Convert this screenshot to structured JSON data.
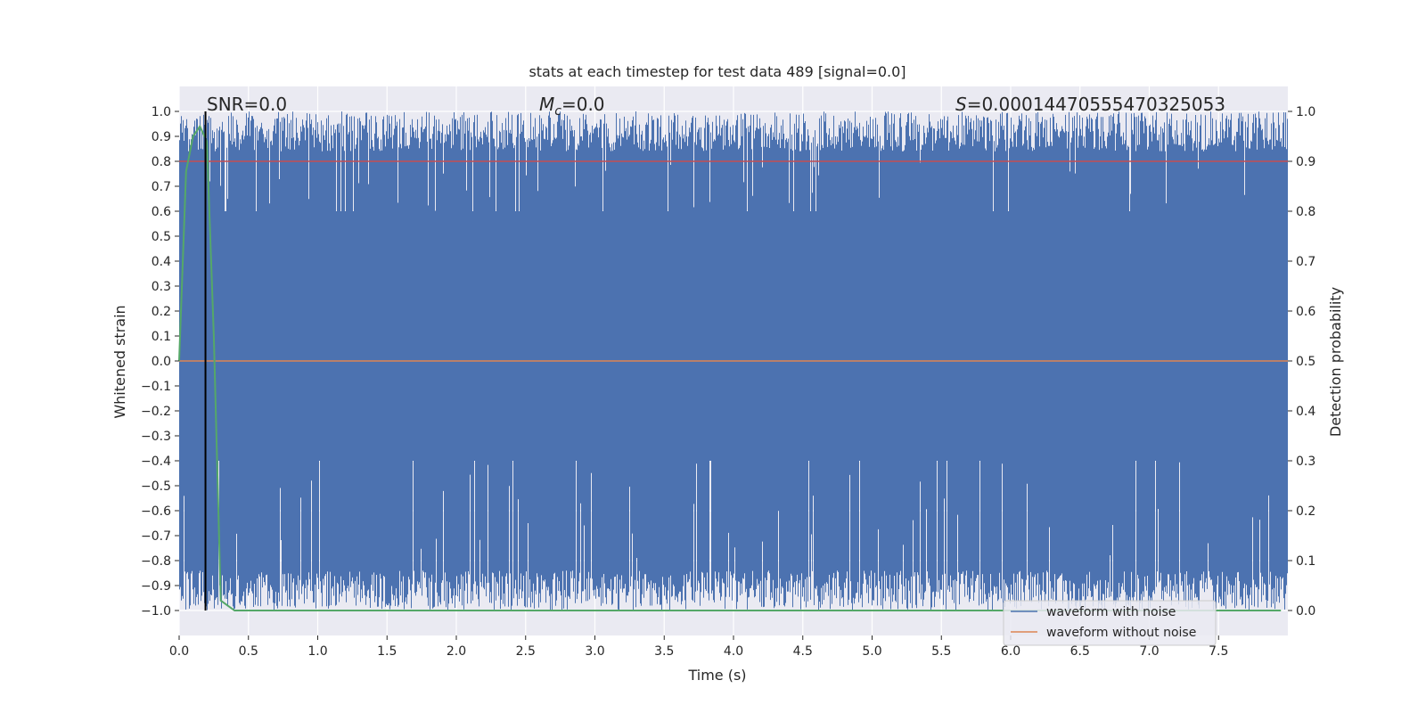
{
  "chart_data": {
    "type": "line",
    "title": "stats at each timestep for test data 489 [signal=0.0]",
    "xlabel": "Time (s)",
    "ylabel": "Whitened strain",
    "ylabel_right": "Detection probability",
    "xlim": [
      0.0,
      8.0
    ],
    "ylim": [
      -1.1,
      1.1
    ],
    "ylim_right": [
      -0.05,
      1.05
    ],
    "x_ticks": [
      "0.0",
      "0.5",
      "1.0",
      "1.5",
      "2.0",
      "2.5",
      "3.0",
      "3.5",
      "4.0",
      "4.5",
      "5.0",
      "5.5",
      "6.0",
      "6.5",
      "7.0",
      "7.5"
    ],
    "y_ticks": [
      "1.0",
      "0.9",
      "0.8",
      "0.7",
      "0.6",
      "0.5",
      "0.4",
      "0.3",
      "0.2",
      "0.1",
      "0.0",
      "−0.1",
      "−0.2",
      "−0.3",
      "−0.4",
      "−0.5",
      "−0.6",
      "−0.7",
      "−0.8",
      "−0.9",
      "−1.0"
    ],
    "y_right_ticks": [
      "1.0",
      "0.9",
      "0.8",
      "0.7",
      "0.6",
      "0.5",
      "0.4",
      "0.3",
      "0.2",
      "0.1",
      "0.0"
    ],
    "grid": true,
    "annotations": {
      "snr": "SNR=0.0",
      "mc_symbol": "M",
      "mc_sub": "c",
      "mc_value": "=0.0",
      "s_symbol": "S",
      "s_value": "=0.00014470555470325053"
    },
    "series": [
      {
        "name": "waveform with noise",
        "color": "#4c72b0",
        "description_range": [
          -1.0,
          1.0
        ]
      },
      {
        "name": "waveform without noise",
        "color": "#dd8452",
        "values_constant": 0.0
      }
    ],
    "detection_probability": {
      "color": "#55a868",
      "x": [
        0.0,
        0.05,
        0.1,
        0.15,
        0.2,
        0.25,
        0.3,
        0.35,
        0.4,
        1.0,
        2.0,
        3.0,
        4.0,
        5.0,
        6.0,
        7.0,
        7.95
      ],
      "y": [
        0.5,
        0.88,
        0.95,
        0.97,
        0.94,
        0.55,
        0.02,
        0.01,
        0.0,
        0.0,
        0.0,
        0.0,
        0.0,
        0.0,
        0.0,
        0.0,
        0.0
      ]
    },
    "threshold_right": {
      "value": 0.9,
      "color": "#c44e52"
    },
    "vline_x": 0.19,
    "legend_position": "lower-right"
  }
}
